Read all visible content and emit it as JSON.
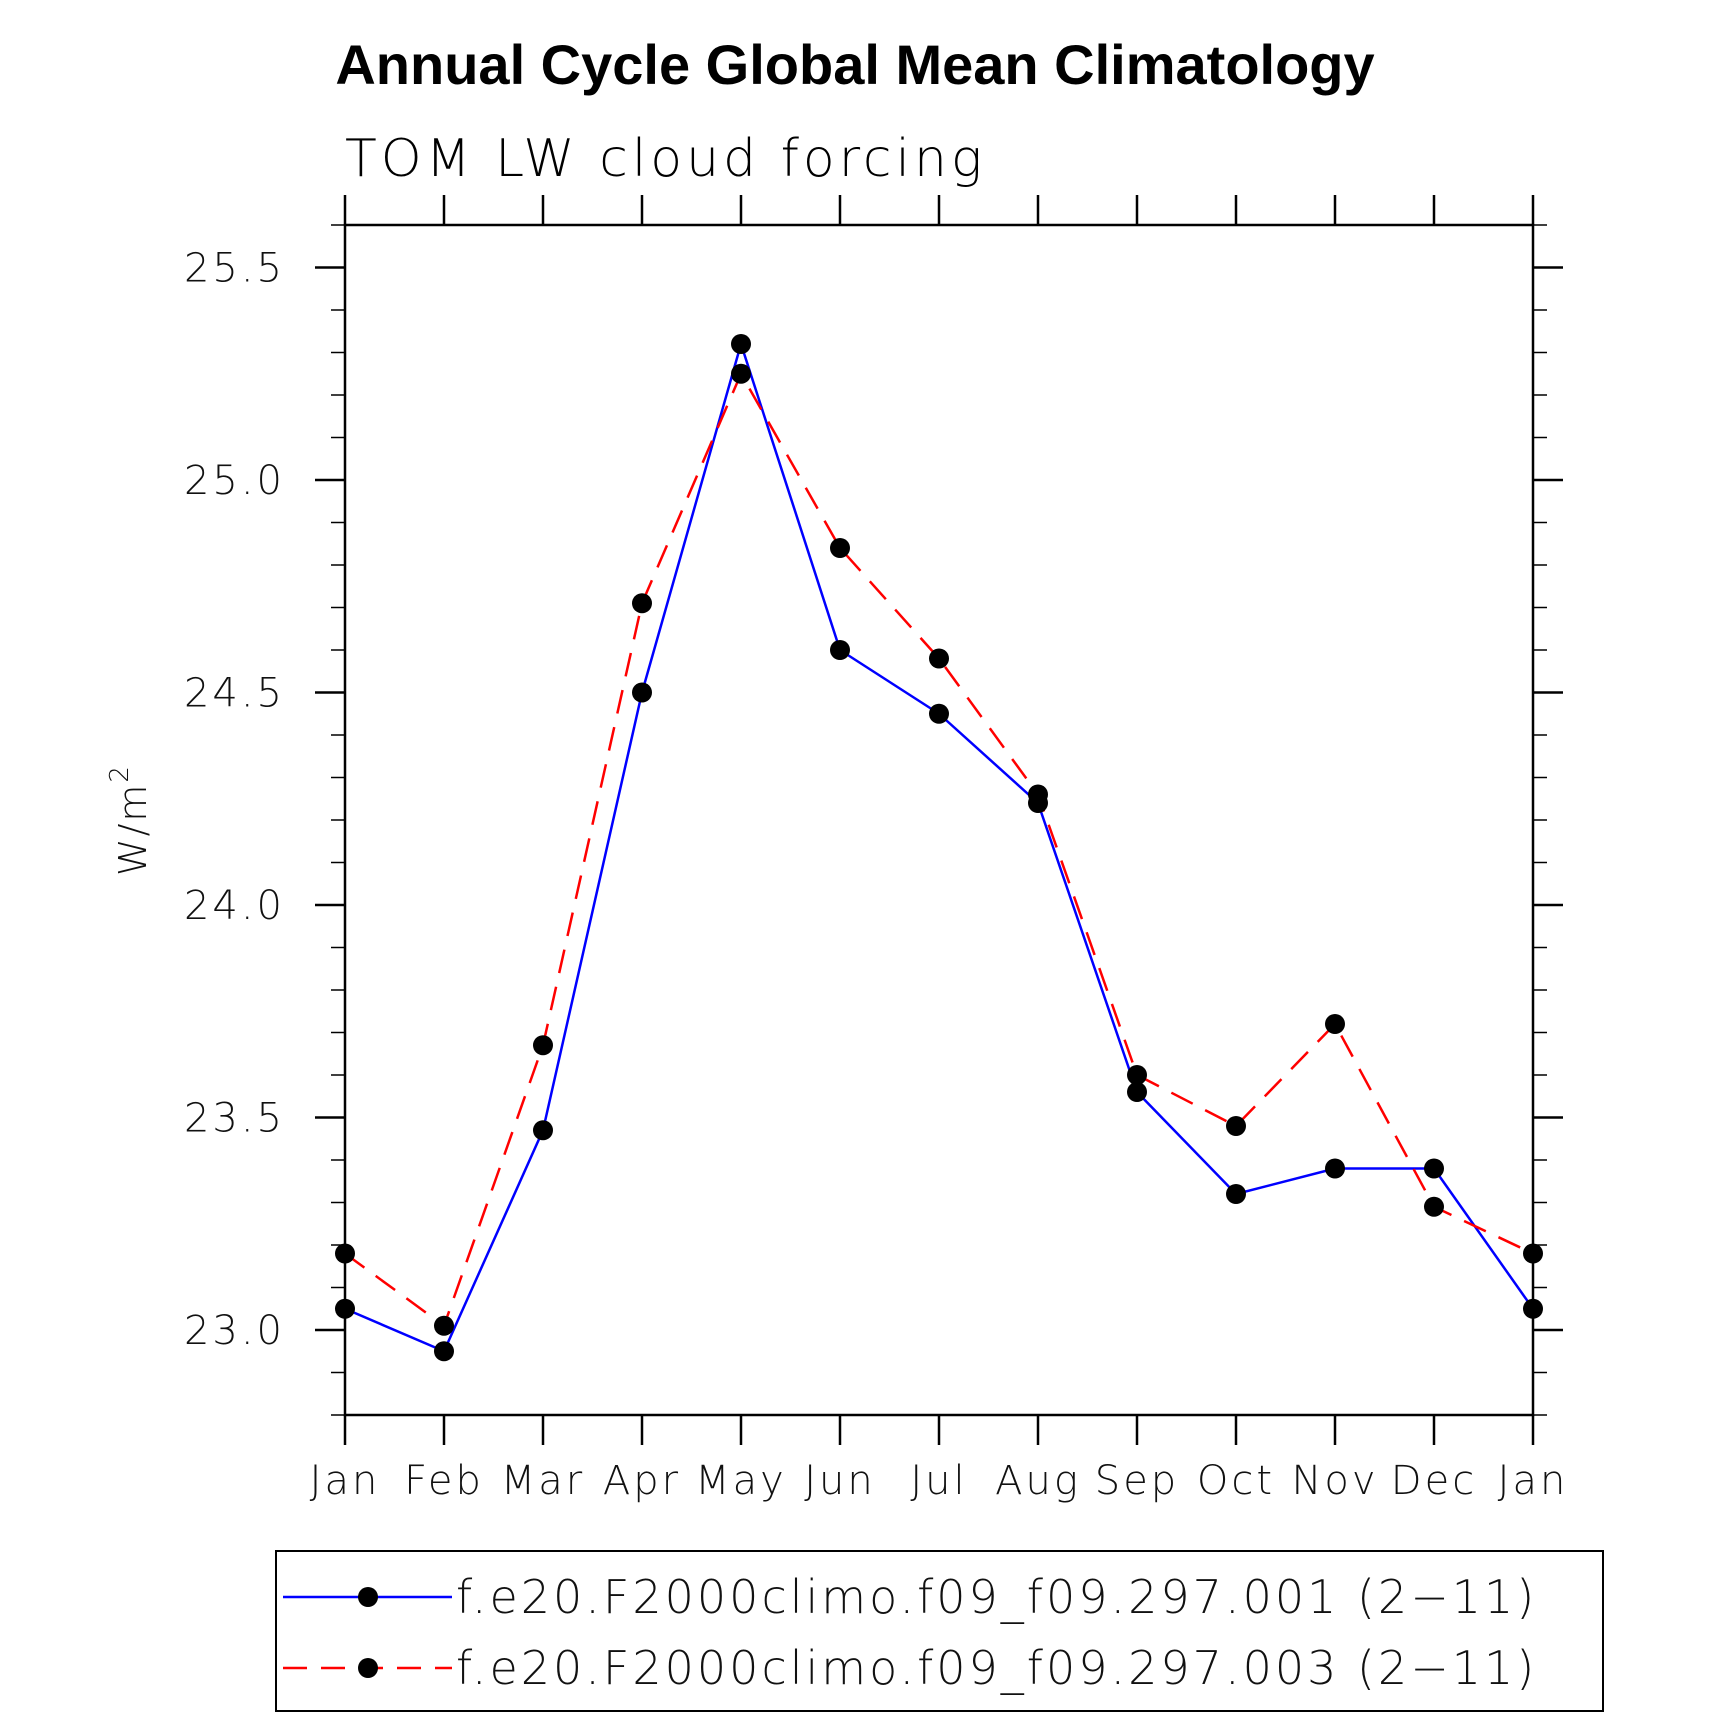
{
  "chart_data": {
    "type": "line",
    "title": "Annual Cycle Global Mean Climatology",
    "subtitle": "TOM LW cloud forcing",
    "ylabel": "W/m",
    "ylabel_superscript": "2",
    "xlabel": "",
    "categories": [
      "Jan",
      "Feb",
      "Mar",
      "Apr",
      "May",
      "Jun",
      "Jul",
      "Aug",
      "Sep",
      "Oct",
      "Nov",
      "Dec",
      "Jan"
    ],
    "ylim": [
      22.8,
      25.6
    ],
    "yticks": [
      "23.0",
      "23.5",
      "24.0",
      "24.5",
      "25.0",
      "25.5"
    ],
    "series": [
      {
        "name": "f.e20.F2000climo.f09_f09.297.001 (2−11)",
        "color": "#0000ff",
        "style": "solid",
        "values": [
          23.05,
          22.95,
          23.47,
          24.5,
          25.32,
          24.6,
          24.45,
          24.24,
          23.56,
          23.32,
          23.38,
          23.38,
          23.05
        ]
      },
      {
        "name": "f.e20.F2000climo.f09_f09.297.003 (2−11)",
        "color": "#ff0000",
        "style": "dashed",
        "values": [
          23.18,
          23.01,
          23.67,
          24.71,
          25.25,
          24.84,
          24.58,
          24.26,
          23.6,
          23.48,
          23.72,
          23.29,
          23.18
        ]
      }
    ],
    "legend_position": "bottom",
    "marker_color": "#000000",
    "axis_color": "#000000"
  }
}
